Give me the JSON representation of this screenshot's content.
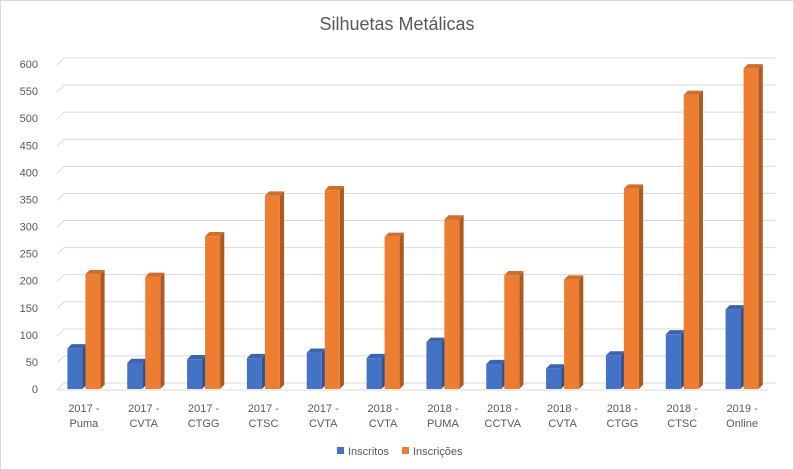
{
  "chart_data": {
    "type": "bar",
    "title": "Silhuetas Metálicas",
    "xlabel": "",
    "ylabel": "",
    "ylim": [
      0,
      600
    ],
    "yticks": [
      0,
      50,
      100,
      150,
      200,
      250,
      300,
      350,
      400,
      450,
      500,
      550,
      600
    ],
    "grid": true,
    "legend_position": "bottom",
    "categories": [
      [
        "2017 -",
        "Puma"
      ],
      [
        "2017 -",
        "CVTA"
      ],
      [
        "2017 -",
        "CTGG"
      ],
      [
        "2017 -",
        "CTSC"
      ],
      [
        "2017 -",
        "CVTA"
      ],
      [
        "2018 -",
        "CVTA"
      ],
      [
        "2018 -",
        "PUMA"
      ],
      [
        "2018 -",
        "CCTVA"
      ],
      [
        "2018 -",
        "CVTA"
      ],
      [
        "2018 -",
        "CTGG"
      ],
      [
        "2018 -",
        "CTSC"
      ],
      [
        "2019 -",
        "Online"
      ]
    ],
    "series": [
      {
        "name": "Inscritos",
        "color": "#4472c4",
        "values": [
          75,
          48,
          55,
          57,
          67,
          57,
          87,
          46,
          38,
          62,
          101,
          147
        ]
      },
      {
        "name": "Inscrições",
        "color": "#ed7d31",
        "values": [
          212,
          207,
          282,
          357,
          367,
          281,
          313,
          210,
          202,
          370,
          543,
          592
        ]
      }
    ]
  }
}
